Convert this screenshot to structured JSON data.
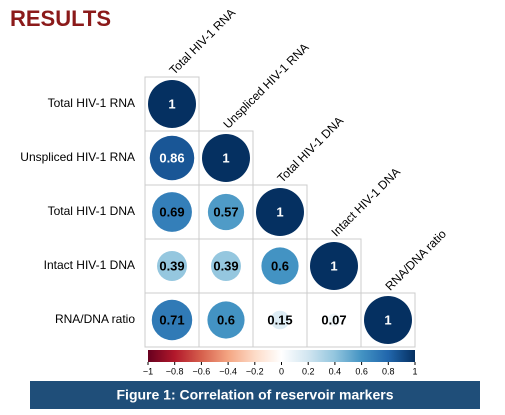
{
  "chart_data": {
    "type": "corrplot",
    "title": "RESULTS",
    "caption": "Figure 1: Correlation of reservoir markers",
    "rows": [
      "Total HIV-1 RNA",
      "Unspliced HIV-1 RNA",
      "Total HIV-1 DNA",
      "Intact HIV-1 DNA",
      "RNA/DNA ratio"
    ],
    "columns": [
      "Total HIV-1 RNA",
      "Unspliced HIV-1 RNA",
      "Total HIV-1 DNA",
      "Intact HIV-1 DNA",
      "RNA/DNA ratio"
    ],
    "values": [
      [
        1
      ],
      [
        0.86,
        1
      ],
      [
        0.69,
        0.57,
        1
      ],
      [
        0.39,
        0.39,
        0.6,
        1
      ],
      [
        0.71,
        0.6,
        0.15,
        0.07,
        1
      ]
    ],
    "colors": [
      "#67001f",
      "#b2182b",
      "#d6604d",
      "#f4a582",
      "#fddbc7",
      "#ffffff",
      "#d1e5f0",
      "#92c5de",
      "#4393c3",
      "#2166ac",
      "#053061"
    ],
    "colorbar_lim": [
      -1,
      1
    ],
    "colorbar_ticks": [
      {
        "value": -1,
        "label": "−1"
      },
      {
        "value": -0.8,
        "label": "−0.8"
      },
      {
        "value": -0.6,
        "label": "−0.6"
      },
      {
        "value": -0.4,
        "label": "−0.4"
      },
      {
        "value": -0.2,
        "label": "−0.2"
      },
      0,
      0.2,
      0.4,
      0.6,
      0.8,
      1
    ]
  }
}
